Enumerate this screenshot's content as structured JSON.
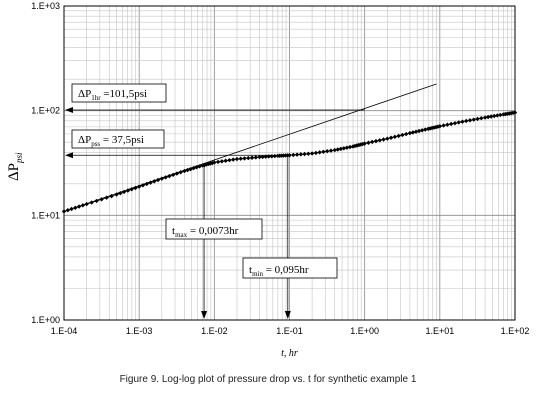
{
  "caption": "Figure 9. Log-log plot of pressure drop vs. t for synthetic example 1",
  "chart_data": {
    "type": "scatter",
    "x_scale": "log",
    "y_scale": "log",
    "xlim": [
      0.0001,
      100
    ],
    "ylim": [
      1,
      1000
    ],
    "x_ticks": [
      "1.E-04",
      "1.E-03",
      "1.E-02",
      "1.E-01",
      "1.E+00",
      "1.E+01",
      "1.E+02"
    ],
    "y_ticks": [
      "1.E+00",
      "1.E+01",
      "1.E+02",
      "1.E+03"
    ],
    "xlabel": "t, hr",
    "ylabel": {
      "base": "ΔP",
      "sub": "psi"
    },
    "grid": true,
    "series": [
      {
        "marker": "diamond",
        "x": [
          0.0001,
          0.0002,
          0.0005,
          0.001,
          0.002,
          0.004,
          0.007,
          0.01,
          0.02,
          0.04,
          0.07,
          0.1,
          0.2,
          0.4,
          0.7,
          1,
          2,
          4,
          7,
          10,
          20,
          40,
          70,
          100
        ],
        "y": [
          10.9,
          12.8,
          15.8,
          18.8,
          22.4,
          26.5,
          30.0,
          32.0,
          34.5,
          36.0,
          37.0,
          37.5,
          39.0,
          42.0,
          45.5,
          48.5,
          54.0,
          61.0,
          67.0,
          71.0,
          78.5,
          86.0,
          92.0,
          96.0
        ]
      },
      {
        "style": "straight-line",
        "x": [
          0.0001,
          9
        ],
        "y": [
          10.9,
          180
        ]
      }
    ],
    "annotations": [
      {
        "base": "ΔP",
        "sub": "1hr",
        "text": " =101,5psi",
        "value": 101.5
      },
      {
        "base": "ΔP",
        "sub": "pss",
        "text": " = 37,5psi",
        "value": 37.5
      },
      {
        "base": "t",
        "sub": "max",
        "text": " = 0,0073hr",
        "value": 0.0073
      },
      {
        "base": "t",
        "sub": "min",
        "text": " = 0,095hr",
        "value": 0.095
      }
    ]
  }
}
